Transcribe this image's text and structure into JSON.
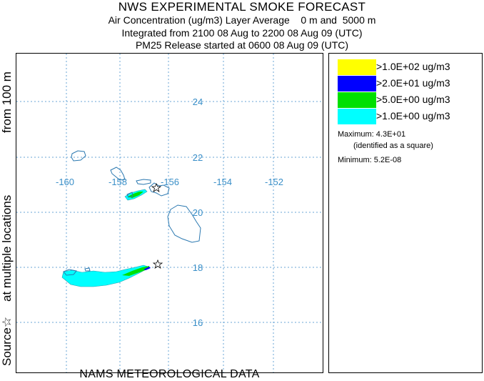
{
  "header": {
    "title": "NWS EXPERIMENTAL SMOKE FORECAST",
    "line1": "Air Concentration (ug/m3) Layer Average    0 m and  5000 m",
    "line2": "Integrated from 2100 08 Aug to 2200 08 Aug 09 (UTC)",
    "line3": "PM25 Release started at 0600 08 Aug 09 (UTC)"
  },
  "side": {
    "part1": "from   100 m",
    "part2": "at multiple locations",
    "part3": "Source☆"
  },
  "footer": {
    "label": "NAMS METEOROLOGICAL DATA"
  },
  "map": {
    "lon_labels": [
      "-160",
      "-158",
      "-156",
      "-154",
      "-152"
    ],
    "lat_labels": [
      "24",
      "22",
      "20",
      "18",
      "16"
    ],
    "grid_color": "#6aa6d6",
    "coast_color": "#2a78b0",
    "label_color": "#3a8fc8"
  },
  "legend": {
    "items": [
      {
        "label": ">1.0E+02 ug/m3",
        "color": "#ffff00"
      },
      {
        "label": ">2.0E+01 ug/m3",
        "color": "#0000ff"
      },
      {
        "label": ">5.0E+00 ug/m3",
        "color": "#00e000"
      },
      {
        "label": ">1.0E+00 ug/m3",
        "color": "#00ffff"
      }
    ],
    "maximum": "Maximum: 4.3E+01",
    "identified": "(identified as a square)",
    "minimum": "Minimum: 5.2E-08"
  }
}
